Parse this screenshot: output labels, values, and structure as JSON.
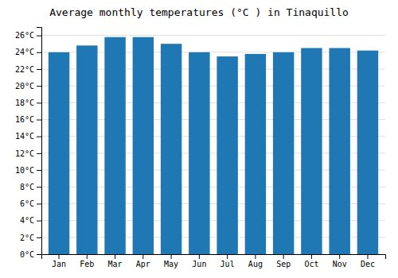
{
  "chart_data": {
    "type": "bar",
    "title": "Average monthly temperatures (°C ) in Tinaquillo",
    "categories": [
      "Jan",
      "Feb",
      "Mar",
      "Apr",
      "May",
      "Jun",
      "Jul",
      "Aug",
      "Sep",
      "Oct",
      "Nov",
      "Dec"
    ],
    "values": [
      24.0,
      24.8,
      25.8,
      25.8,
      25.0,
      24.0,
      23.5,
      23.8,
      24.0,
      24.5,
      24.5,
      24.2
    ],
    "ylim": [
      0,
      27
    ],
    "yticks": [
      {
        "value": 0,
        "label": "0°C"
      },
      {
        "value": 2,
        "label": "2°C"
      },
      {
        "value": 4,
        "label": "4°C"
      },
      {
        "value": 6,
        "label": "6°C"
      },
      {
        "value": 8,
        "label": "8°C"
      },
      {
        "value": 10,
        "label": "10°C"
      },
      {
        "value": 12,
        "label": "12°C"
      },
      {
        "value": 14,
        "label": "14°C"
      },
      {
        "value": 16,
        "label": "16°C"
      },
      {
        "value": 18,
        "label": "18°C"
      },
      {
        "value": 20,
        "label": "20°C"
      },
      {
        "value": 22,
        "label": "22°C"
      },
      {
        "value": 24,
        "label": "24°C"
      },
      {
        "value": 26,
        "label": "26°C"
      }
    ],
    "grid": true
  }
}
